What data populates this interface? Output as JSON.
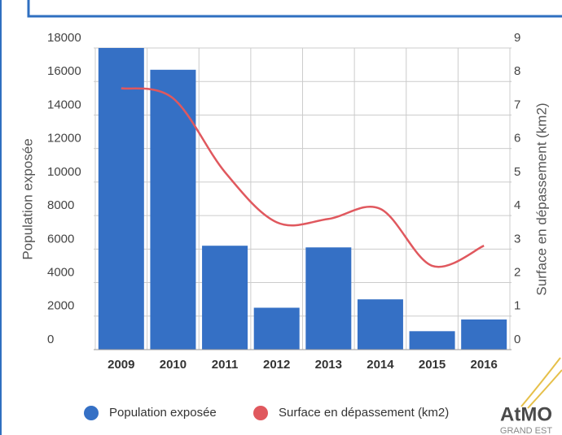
{
  "chart_data": {
    "type": "bar_line",
    "categories": [
      "2009",
      "2010",
      "2011",
      "2012",
      "2013",
      "2014",
      "2015",
      "2016"
    ],
    "series": [
      {
        "name": "Population exposée",
        "type": "bar",
        "color": "#3570c5",
        "values": [
          18000,
          16700,
          6200,
          2500,
          6100,
          3000,
          1100,
          1800
        ]
      },
      {
        "name": "Surface en dépassement (km2)",
        "type": "line",
        "axis": "y2",
        "color": "#e0585e",
        "values": [
          7.8,
          7.5,
          5.3,
          3.8,
          3.9,
          4.2,
          2.5,
          3.1
        ]
      }
    ],
    "ylabel": "Population exposée",
    "y2label": "Surface en dépassement (km2)",
    "ylim": [
      0,
      18000
    ],
    "yticks": [
      0,
      2000,
      4000,
      6000,
      8000,
      10000,
      12000,
      14000,
      16000,
      18000
    ],
    "y2lim": [
      0,
      9
    ],
    "y2ticks": [
      0,
      1,
      2,
      3,
      4,
      5,
      6,
      7,
      8,
      9
    ],
    "grid": true,
    "legend": "bottom"
  },
  "logo": {
    "text": "AtMO",
    "subtext": "GRAND EST"
  }
}
